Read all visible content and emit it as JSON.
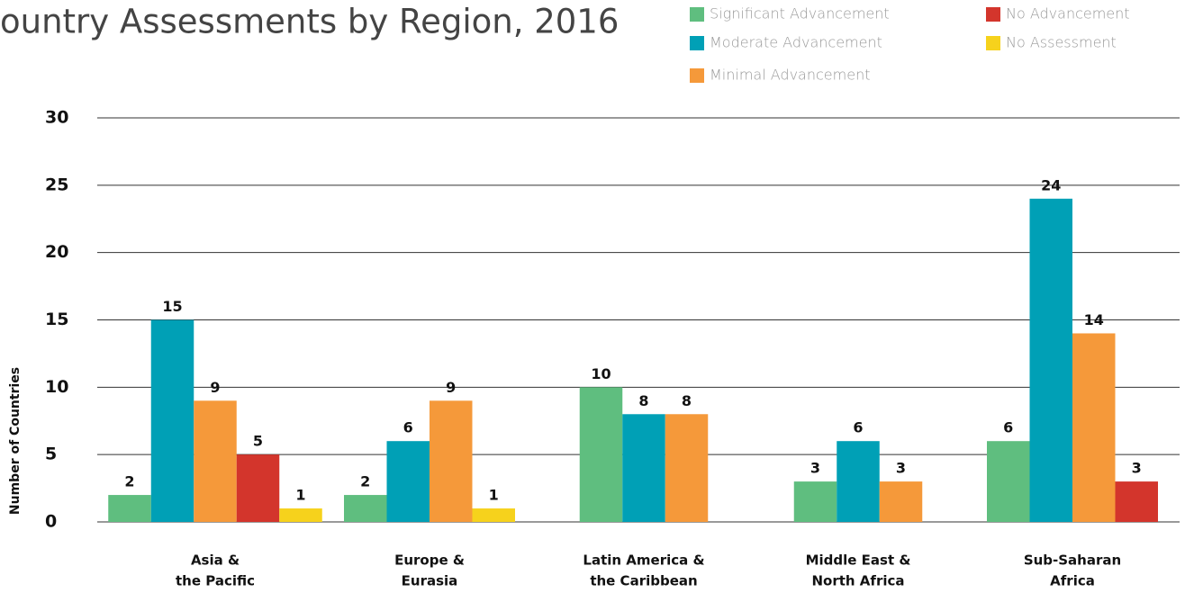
{
  "chart_data": {
    "type": "bar",
    "title": "ountry Assessments by Region, 2016",
    "y_label": "Number of Countries",
    "categories": [
      [
        "Asia &",
        "the Pacific"
      ],
      [
        "Europe &",
        "Eurasia"
      ],
      [
        "Latin America &",
        "the Caribbean"
      ],
      [
        "Middle East &",
        "North Africa"
      ],
      [
        "Sub-Saharan",
        "Africa"
      ]
    ],
    "series": [
      {
        "name": "Significant Advancement",
        "color": "#5fbe7f",
        "values": [
          2,
          2,
          10,
          3,
          6
        ]
      },
      {
        "name": "Moderate Advancement",
        "color": "#00a0b6",
        "values": [
          15,
          6,
          8,
          6,
          24
        ]
      },
      {
        "name": "Minimal Advancement",
        "color": "#f5993a",
        "values": [
          9,
          9,
          8,
          3,
          14
        ]
      },
      {
        "name": "No Advancement",
        "color": "#d3352c",
        "values": [
          5,
          null,
          null,
          null,
          3
        ]
      },
      {
        "name": "No Assessment",
        "color": "#f6d21c",
        "values": [
          1,
          1,
          null,
          null,
          null
        ]
      }
    ],
    "ylim": [
      0,
      30
    ],
    "yticks": [
      0,
      5,
      10,
      15,
      20,
      25,
      30
    ],
    "grid": true
  }
}
